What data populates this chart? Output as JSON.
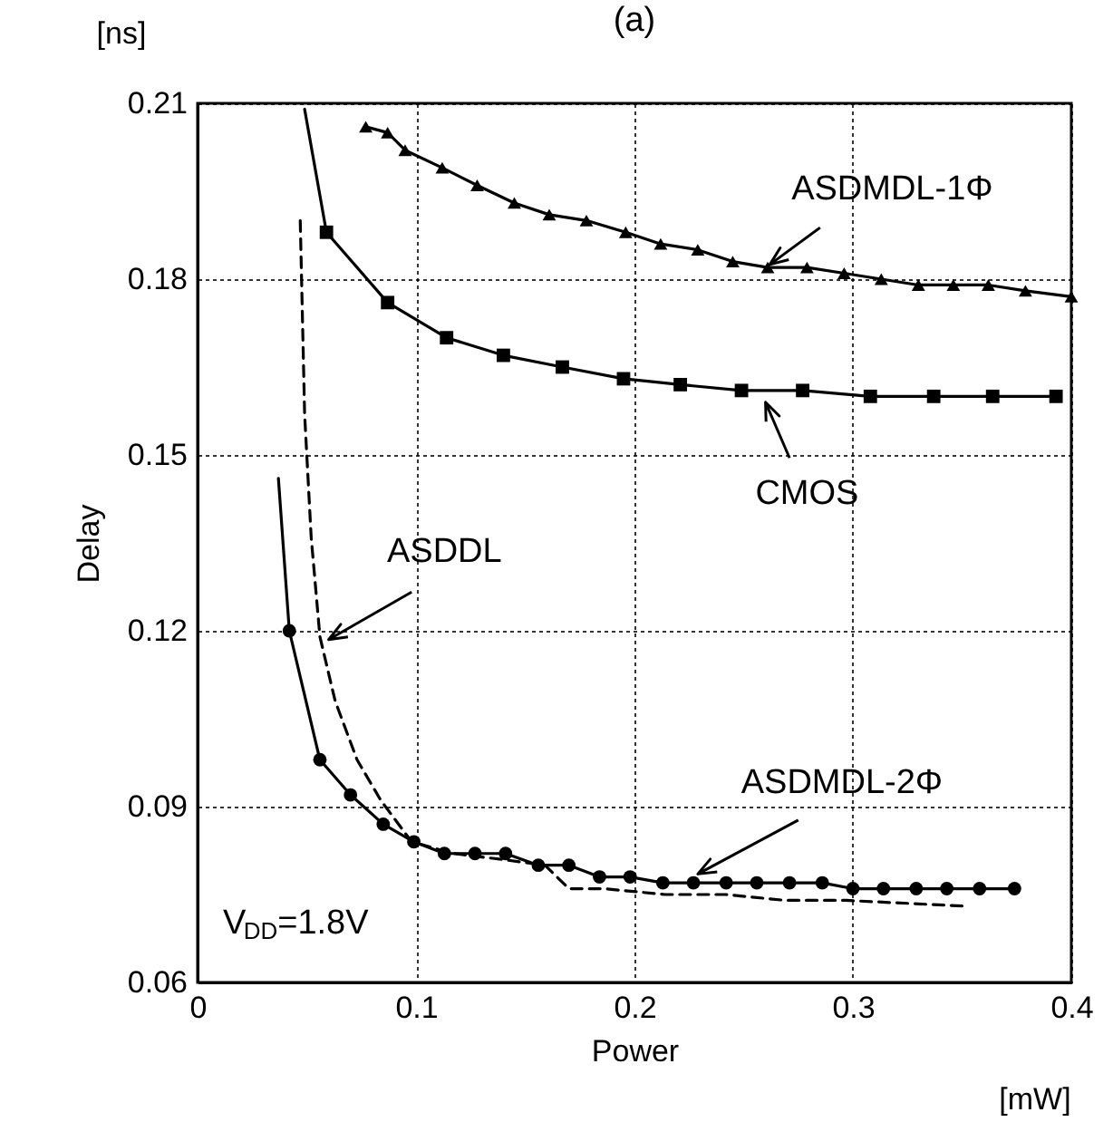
{
  "chart_data": {
    "type": "line",
    "title": "(a)",
    "xlabel": "Power",
    "ylabel": "Delay",
    "annotations": [
      "[ns]",
      "[mW]",
      "V$_{DD}$=1.8V"
    ],
    "xlim": [
      0,
      0.4
    ],
    "ylim": [
      0.06,
      0.21
    ],
    "xticks": [
      0,
      0.1,
      0.2,
      0.3,
      0.4
    ],
    "yticks": [
      0.06,
      0.09,
      0.12,
      0.15,
      0.18,
      0.21
    ],
    "grid": true,
    "series": [
      {
        "name": "ASDMDL-1Φ",
        "color": "#000000",
        "marker": "triangle",
        "line_style": "solid",
        "x": [
          0.077,
          0.087,
          0.095,
          0.112,
          0.128,
          0.145,
          0.161,
          0.178,
          0.196,
          0.212,
          0.229,
          0.245,
          0.261,
          0.279,
          0.296,
          0.313,
          0.33,
          0.346,
          0.362,
          0.379,
          0.4
        ],
        "values": [
          0.206,
          0.205,
          0.202,
          0.199,
          0.196,
          0.193,
          0.191,
          0.19,
          0.188,
          0.186,
          0.185,
          0.183,
          0.182,
          0.182,
          0.181,
          0.18,
          0.179,
          0.179,
          0.179,
          0.178,
          0.177
        ]
      },
      {
        "name": "CMOS",
        "color": "#000000",
        "marker": "square",
        "line_style": "solid",
        "x": [
          0.059,
          0.087,
          0.114,
          0.14,
          0.167,
          0.195,
          0.221,
          0.249,
          0.277,
          0.308,
          0.337,
          0.364,
          0.393
        ],
        "values": [
          0.188,
          0.176,
          0.17,
          0.167,
          0.165,
          0.163,
          0.162,
          0.161,
          0.161,
          0.16,
          0.16,
          0.16,
          0.16
        ]
      },
      {
        "name": "ASDDL",
        "color": "#000000",
        "marker": "none",
        "line_style": "dashed",
        "x": [
          0.047,
          0.049,
          0.052,
          0.056,
          0.063,
          0.073,
          0.084,
          0.098,
          0.117,
          0.139,
          0.159,
          0.17,
          0.186,
          0.214,
          0.242,
          0.269,
          0.297,
          0.352
        ],
        "values": [
          0.19,
          0.157,
          0.136,
          0.119,
          0.108,
          0.098,
          0.091,
          0.084,
          0.082,
          0.081,
          0.08,
          0.076,
          0.076,
          0.075,
          0.075,
          0.074,
          0.074,
          0.073
        ]
      },
      {
        "name": "ASDMDL-2Φ",
        "color": "#000000",
        "marker": "circle",
        "line_style": "solid",
        "x": [
          0.042,
          0.056,
          0.07,
          0.085,
          0.099,
          0.113,
          0.127,
          0.141,
          0.156,
          0.17,
          0.184,
          0.198,
          0.213,
          0.227,
          0.242,
          0.256,
          0.271,
          0.286,
          0.3,
          0.314,
          0.329,
          0.343,
          0.358,
          0.374
        ],
        "values": [
          0.12,
          0.098,
          0.092,
          0.087,
          0.084,
          0.082,
          0.082,
          0.082,
          0.08,
          0.08,
          0.078,
          0.078,
          0.077,
          0.077,
          0.077,
          0.077,
          0.077,
          0.077,
          0.076,
          0.076,
          0.076,
          0.076,
          0.076,
          0.076
        ]
      },
      {
        "color": "#000000",
        "marker": "none",
        "line_style": "solid",
        "x": [
          0.037,
          0.042
        ],
        "values": [
          0.146,
          0.12
        ]
      },
      {
        "color": "#000000",
        "marker": "none",
        "line_style": "solid",
        "x": [
          0.049,
          0.059
        ],
        "values": [
          0.209,
          0.188
        ]
      }
    ]
  }
}
